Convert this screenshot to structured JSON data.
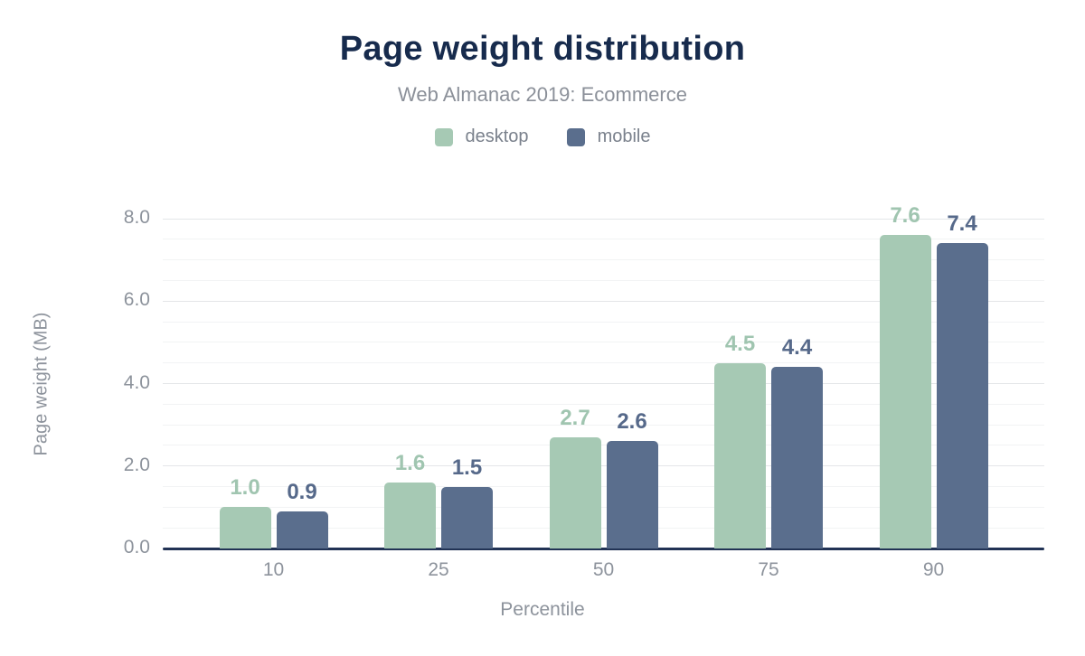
{
  "chart_data": {
    "type": "bar",
    "title": "Page weight distribution",
    "subtitle": "Web Almanac 2019: Ecommerce",
    "xlabel": "Percentile",
    "ylabel": "Page weight (MB)",
    "categories": [
      "10",
      "25",
      "50",
      "75",
      "90"
    ],
    "series": [
      {
        "name": "desktop",
        "values": [
          1.0,
          1.6,
          2.7,
          4.5,
          7.6
        ],
        "color": "#a6c9b4",
        "label_color": "#a0c5b0"
      },
      {
        "name": "mobile",
        "values": [
          0.9,
          1.5,
          2.6,
          4.4,
          7.4
        ],
        "color": "#5a6e8d",
        "label_color": "#56698a"
      }
    ],
    "ylim": [
      0,
      8
    ],
    "ytick_step": 2,
    "minor_tick_step": 0.5,
    "ytick_labels": [
      "0.0",
      "2.0",
      "4.0",
      "6.0",
      "8.0"
    ],
    "grid": true,
    "legend_position": "top",
    "value_label_format": "one_decimal"
  },
  "layout_colors": {
    "title": "#172b4d",
    "subtitle": "#8b9099",
    "axis_text": "#8d939c",
    "baseline": "#223355",
    "grid_major": "#e4e6e8",
    "grid_minor": "#f2f3f4"
  }
}
